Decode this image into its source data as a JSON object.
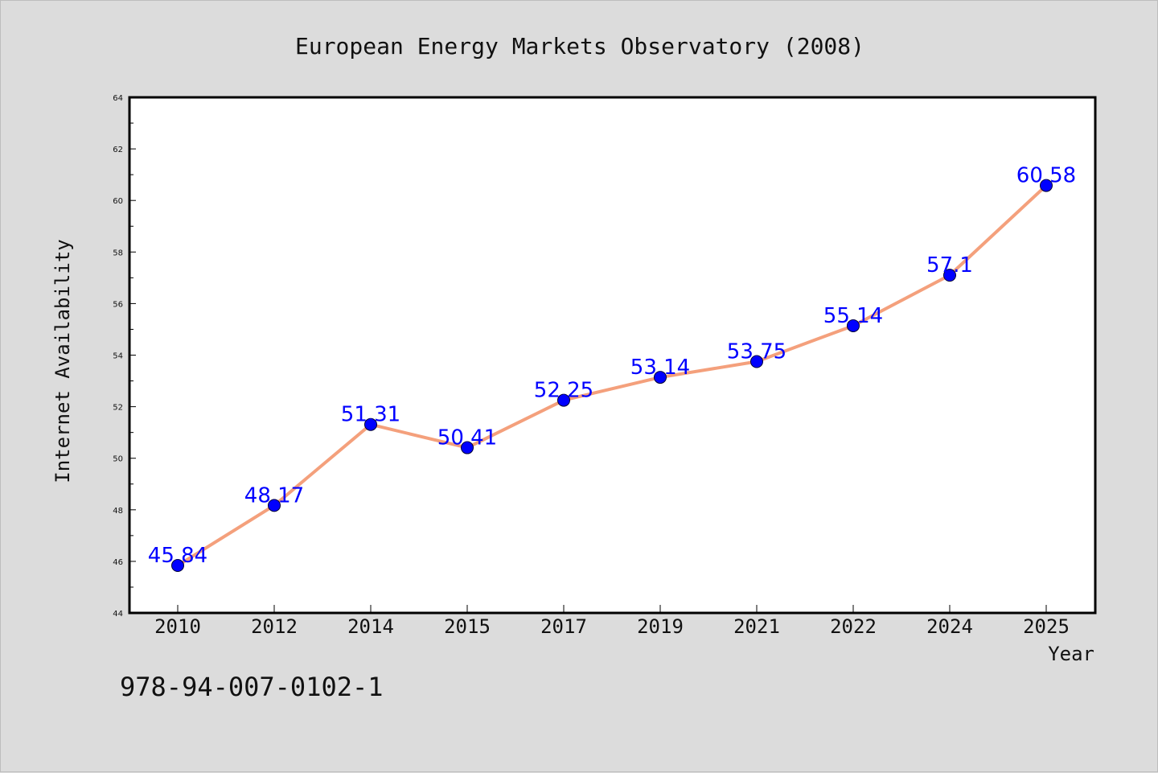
{
  "chart_data": {
    "type": "line",
    "title": "European Energy Markets Observatory (2008)",
    "xlabel": "Year",
    "ylabel": "Internet Availability",
    "categories": [
      "2010",
      "2012",
      "2014",
      "2015",
      "2017",
      "2019",
      "2021",
      "2022",
      "2024",
      "2025"
    ],
    "series": [
      {
        "values": [
          45.84,
          48.17,
          51.31,
          50.41,
          52.25,
          53.14,
          53.75,
          55.14,
          57.1,
          60.58
        ],
        "labels": [
          "45.84",
          "48.17",
          "51.31",
          "50.41",
          "52.25",
          "53.14",
          "53.75",
          "55.14",
          "57.1",
          "60.58"
        ],
        "line_color": "#f4a07c",
        "marker_color": "#0000ff"
      }
    ],
    "ylim": [
      44,
      64
    ],
    "yticks": [
      "44",
      "46",
      "48",
      "50",
      "52",
      "54",
      "56",
      "58",
      "60",
      "62",
      "64"
    ],
    "grid": false,
    "legend": "none"
  },
  "footer": {
    "isbn": "978-94-007-0102-1"
  },
  "colors": {
    "background": "#dcdcdc",
    "plot_background": "#ffffff",
    "line": "#f4a07c",
    "marker": "#0000ff",
    "label": "#0000ff"
  }
}
